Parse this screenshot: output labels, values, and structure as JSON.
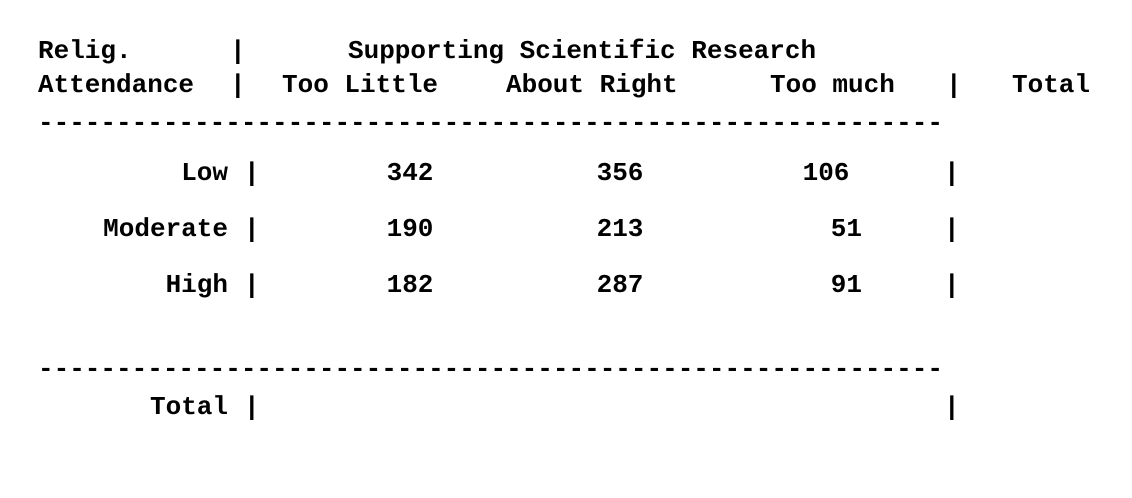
{
  "header": {
    "row_var_line1": "Relig.",
    "row_var_line2": "Attendance",
    "col_var_title": "Supporting Scientific Research",
    "separator": "|",
    "columns": [
      "Too Little",
      "About Right",
      "Too much"
    ],
    "total_label": "Total"
  },
  "rule": "----------------------------------------------------------",
  "rows": [
    {
      "label": "Low",
      "values": [
        "342",
        "356",
        "106"
      ],
      "total": ""
    },
    {
      "label": "Moderate",
      "values": [
        "190",
        "213",
        "51"
      ],
      "total": ""
    },
    {
      "label": "High",
      "values": [
        "182",
        "287",
        "91"
      ],
      "total": ""
    }
  ],
  "totals_row": {
    "label": "Total",
    "values": [
      "",
      "",
      ""
    ],
    "total": ""
  }
}
